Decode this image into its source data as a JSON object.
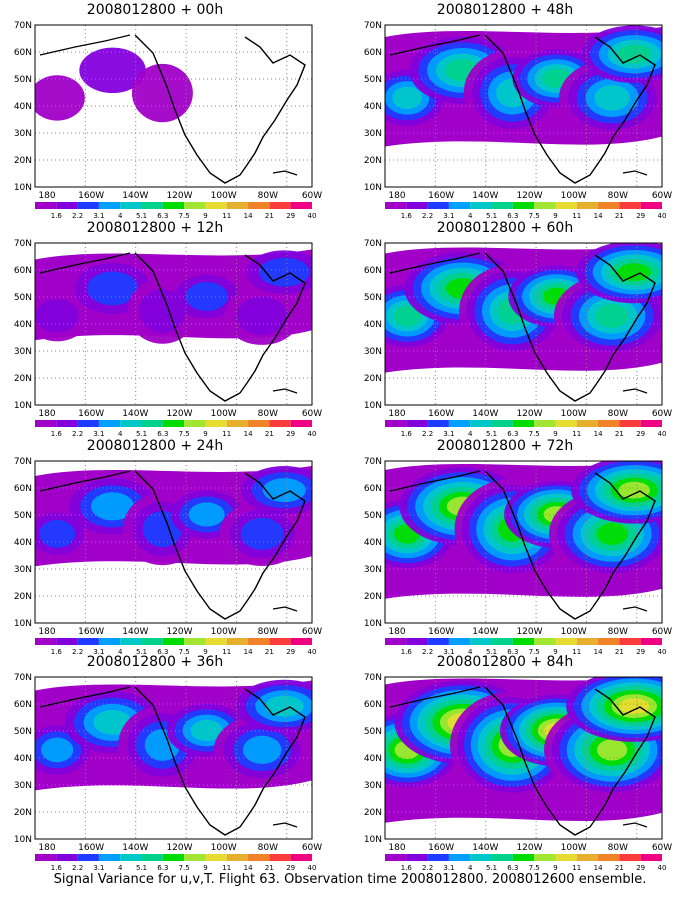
{
  "panels": [
    {
      "title": "2008012800 + 00h",
      "intensity": 0
    },
    {
      "title": "2008012800 + 48h",
      "intensity": 4
    },
    {
      "title": "2008012800 + 12h",
      "intensity": 1
    },
    {
      "title": "2008012800 + 60h",
      "intensity": 5
    },
    {
      "title": "2008012800 + 24h",
      "intensity": 2
    },
    {
      "title": "2008012800 + 72h",
      "intensity": 6
    },
    {
      "title": "2008012800 + 36h",
      "intensity": 3
    },
    {
      "title": "2008012800 + 84h",
      "intensity": 7
    }
  ],
  "lat_labels": [
    "70N",
    "60N",
    "50N",
    "40N",
    "30N",
    "20N",
    "10N"
  ],
  "lon_labels": [
    "180",
    "160W",
    "140W",
    "120W",
    "100W",
    "80W",
    "60W"
  ],
  "colorbar": {
    "labels": [
      "1.6",
      "2.2",
      "3.1",
      "4",
      "5.1",
      "6.3",
      "7.5",
      "9",
      "11",
      "14",
      "21",
      "29",
      "40"
    ],
    "colors": [
      "#a000c8",
      "#8200dc",
      "#1e3cff",
      "#00a0ff",
      "#00c8c8",
      "#00d28c",
      "#00dc00",
      "#a0e632",
      "#e6dc32",
      "#e6af2d",
      "#f08228",
      "#fa3c3c",
      "#f00082"
    ]
  },
  "caption": "Signal Variance for u,v,T. Flight 63. Observation time 2008012800. 2008012600 ensemble."
}
